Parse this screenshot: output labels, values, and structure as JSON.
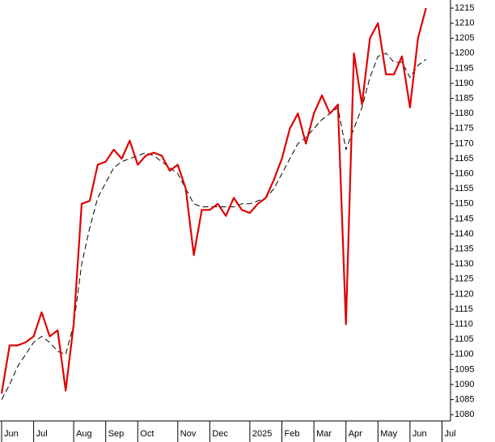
{
  "chart_data": {
    "type": "line",
    "categories": [
      "Jun",
      null,
      null,
      null,
      "Jul",
      null,
      null,
      null,
      null,
      "Aug",
      null,
      null,
      null,
      "Sep",
      null,
      null,
      null,
      "Oct",
      null,
      null,
      null,
      null,
      "Nov",
      null,
      null,
      null,
      "Dec",
      null,
      null,
      null,
      null,
      "2025",
      null,
      null,
      null,
      "Feb",
      null,
      null,
      null,
      "Mar",
      null,
      null,
      null,
      "Apr",
      null,
      null,
      null,
      "May",
      null,
      null,
      null,
      "Jun",
      null,
      null,
      null,
      "Jul"
    ],
    "series": [
      {
        "color": "#e00000",
        "style": "solid",
        "values": [
          1087,
          1103,
          1103,
          1104,
          1106,
          1114,
          1106,
          1108,
          1088,
          1110,
          1150,
          1151,
          1163,
          1164,
          1168,
          1165,
          1171,
          1163,
          1166,
          1167,
          1166,
          1161,
          1163,
          1155,
          1133,
          1148,
          1148,
          1150,
          1146,
          1152,
          1148,
          1147,
          1150,
          1152,
          1158,
          1165,
          1175,
          1180,
          1170,
          1180,
          1186,
          1180,
          1183,
          1110,
          1200,
          1183,
          1205,
          1210,
          1193,
          1193,
          1199,
          1182,
          1205,
          1215,
          null,
          null
        ]
      },
      {
        "color": "#000000",
        "style": "dashed",
        "values": [
          1085,
          1090,
          1096,
          1100,
          1104,
          1106,
          1104,
          1101,
          1100,
          1110,
          1130,
          1142,
          1152,
          1157,
          1162,
          1164,
          1165,
          1166,
          1167,
          1166,
          1164,
          1162,
          1160,
          1155,
          1150,
          1149,
          1149,
          1149,
          1149,
          1149,
          1150,
          1150,
          1151,
          1152,
          1155,
          1160,
          1165,
          1170,
          1172,
          1175,
          1178,
          1180,
          1182,
          1168,
          1175,
          1182,
          1192,
          1199,
          1200,
          1197,
          1197,
          1192,
          1196,
          1198,
          null,
          null
        ]
      }
    ],
    "ylim": [
      1077.9,
      1217.7
    ],
    "yticks": [
      1080,
      1085,
      1090,
      1095,
      1100,
      1105,
      1110,
      1115,
      1120,
      1125,
      1130,
      1135,
      1140,
      1145,
      1150,
      1155,
      1160,
      1165,
      1170,
      1175,
      1180,
      1185,
      1190,
      1195,
      1200,
      1205,
      1210,
      1215
    ],
    "grid": false
  }
}
